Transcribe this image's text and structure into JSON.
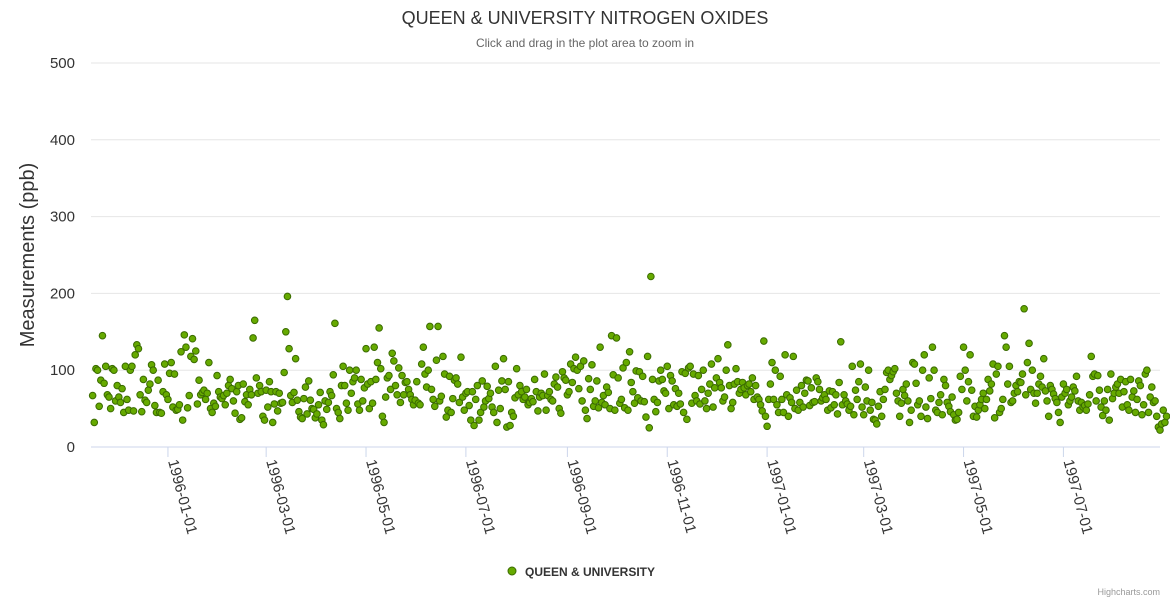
{
  "chart_data": {
    "type": "scatter",
    "title": "QUEEN & UNIVERSITY NITROGEN OXIDES",
    "subtitle": "Click and drag in the plot area to zoom in",
    "xlabel": "",
    "ylabel": "Measurements (ppb)",
    "ylim": [
      0,
      500
    ],
    "xlim": [
      "1995-11-15",
      "1997-08-29"
    ],
    "y_ticks": [
      "0",
      "100",
      "200",
      "300",
      "400",
      "500"
    ],
    "x_ticks": [
      "1996-01-01",
      "1996-03-01",
      "1996-05-01",
      "1996-07-01",
      "1996-09-01",
      "1996-11-01",
      "1997-01-01",
      "1997-03-01",
      "1997-05-01",
      "1997-07-01"
    ],
    "grid": true,
    "legend_position": "bottom-center",
    "credit": "Highcharts.com",
    "series": [
      {
        "name": "QUEEN & UNIVERSITY",
        "color": "#66aa00",
        "border_color": "#3a6b00",
        "start_date": "1995-11-16",
        "values": [
          67,
          32,
          102,
          100,
          53,
          87,
          145,
          83,
          105,
          68,
          65,
          50,
          102,
          100,
          60,
          80,
          65,
          58,
          76,
          45,
          105,
          62,
          48,
          100,
          105,
          47,
          120,
          133,
          128,
          68,
          46,
          88,
          61,
          58,
          74,
          82,
          107,
          100,
          54,
          45,
          87,
          45,
          44,
          72,
          108,
          68,
          62,
          96,
          110,
          52,
          95,
          48,
          49,
          55,
          124,
          35,
          146,
          130,
          51,
          67,
          118,
          141,
          114,
          125,
          56,
          87,
          68,
          71,
          74,
          62,
          70,
          110,
          50,
          45,
          57,
          53,
          93,
          72,
          65,
          63,
          67,
          55,
          70,
          80,
          88,
          76,
          60,
          44,
          72,
          80,
          36,
          38,
          82,
          59,
          68,
          55,
          75,
          68,
          142,
          165,
          90,
          70,
          80,
          72,
          40,
          35,
          74,
          52,
          85,
          72,
          32,
          56,
          72,
          47,
          70,
          57,
          58,
          97,
          150,
          196,
          128,
          67,
          58,
          71,
          115,
          61,
          46,
          39,
          37,
          63,
          78,
          43,
          86,
          61,
          50,
          49,
          38,
          43,
          55,
          71,
          35,
          29,
          60,
          49,
          58,
          72,
          67,
          94,
          161,
          50,
          45,
          37,
          80,
          105,
          80,
          57,
          48,
          100,
          70,
          85,
          90,
          100,
          56,
          48,
          88,
          60,
          77,
          128,
          82,
          50,
          85,
          57,
          130,
          88,
          110,
          155,
          102,
          40,
          32,
          65,
          90,
          93,
          75,
          122,
          112,
          80,
          68,
          103,
          58,
          93,
          68,
          84,
          85,
          75,
          68,
          62,
          55,
          61,
          85,
          57,
          55,
          108,
          130,
          95,
          78,
          100,
          157,
          75,
          62,
          53,
          113,
          157,
          60,
          66,
          118,
          95,
          39,
          48,
          92,
          45,
          63,
          87,
          90,
          82,
          58,
          117,
          65,
          48,
          70,
          72,
          54,
          35,
          72,
          28,
          62,
          80,
          35,
          45,
          86,
          52,
          60,
          79,
          63,
          70,
          52,
          45,
          105,
          32,
          74,
          50,
          86,
          115,
          75,
          26,
          85,
          28,
          45,
          40,
          64,
          102,
          68,
          80,
          72,
          62,
          65,
          75,
          55,
          58,
          63,
          59,
          88,
          72,
          47,
          65,
          70,
          67,
          95,
          48,
          67,
          72,
          62,
          60,
          82,
          91,
          78,
          50,
          44,
          98,
          90,
          87,
          68,
          72,
          108,
          84,
          102,
          117,
          100,
          76,
          105,
          60,
          112,
          48,
          37,
          89,
          75,
          107,
          53,
          60,
          86,
          51,
          130,
          58,
          67,
          55,
          78,
          71,
          50,
          145,
          94,
          48,
          142,
          90,
          57,
          62,
          103,
          51,
          110,
          48,
          124,
          84,
          72,
          57,
          99,
          64,
          98,
          60,
          92,
          59,
          39,
          118,
          25,
          222,
          88,
          62,
          46,
          58,
          86,
          100,
          88,
          73,
          70,
          105,
          50,
          93,
          86,
          55,
          76,
          53,
          70,
          56,
          98,
          45,
          96,
          36,
          103,
          105,
          57,
          95,
          67,
          60,
          93,
          56,
          75,
          100,
          60,
          50,
          70,
          82,
          108,
          52,
          77,
          90,
          115,
          84,
          77,
          60,
          65,
          100,
          133,
          80,
          50,
          58,
          82,
          102,
          85,
          70,
          75,
          84,
          77,
          68,
          80,
          82,
          72,
          90,
          62,
          80,
          65,
          62,
          55,
          47,
          138,
          40,
          27,
          62,
          82,
          110,
          62,
          100,
          55,
          45,
          92,
          62,
          45,
          120,
          68,
          40,
          64,
          58,
          118,
          50,
          74,
          48,
          58,
          80,
          52,
          70,
          87,
          86,
          54,
          77,
          58,
          59,
          90,
          85,
          75,
          60,
          64,
          68,
          62,
          48,
          73,
          51,
          72,
          55,
          68,
          43,
          84,
          137,
          55,
          68,
          60,
          56,
          48,
          53,
          105,
          42,
          74,
          62,
          85,
          108,
          52,
          42,
          78,
          60,
          100,
          48,
          58,
          36,
          35,
          30,
          53,
          72,
          40,
          62,
          75,
          97,
          100,
          88,
          93,
          98,
          102,
          70,
          60,
          40,
          57,
          75,
          67,
          82,
          60,
          32,
          48,
          110,
          108,
          83,
          55,
          60,
          40,
          100,
          120,
          52,
          37,
          90,
          63,
          130,
          100,
          48,
          45,
          58,
          68,
          42,
          88,
          80,
          58,
          53,
          46,
          65,
          42,
          35,
          36,
          45,
          92,
          75,
          130,
          100,
          60,
          85,
          120,
          74,
          40,
          53,
          39,
          48,
          55,
          62,
          70,
          50,
          62,
          88,
          73,
          82,
          108,
          38,
          95,
          105,
          45,
          50,
          62,
          145,
          130,
          82,
          105,
          58,
          60,
          70,
          80,
          72,
          85,
          84,
          95,
          180,
          68,
          110,
          135,
          75,
          100,
          70,
          57,
          70,
          82,
          92,
          78,
          115,
          73,
          60,
          40,
          80,
          75,
          69,
          63,
          58,
          45,
          32,
          65,
          82,
          70,
          75,
          55,
          60,
          65,
          78,
          73,
          92,
          60,
          48,
          58,
          52,
          54,
          48,
          56,
          68,
          118,
          92,
          95,
          60,
          93,
          74,
          52,
          41,
          60,
          48,
          75,
          35,
          95,
          63,
          70,
          78,
          82,
          70,
          88,
          52,
          72,
          85,
          55,
          48,
          88,
          65,
          73,
          45,
          62,
          86,
          80,
          42,
          55,
          95,
          100,
          45,
          65,
          78,
          58,
          60,
          40,
          26,
          22,
          30,
          48,
          32,
          40
        ]
      }
    ]
  }
}
